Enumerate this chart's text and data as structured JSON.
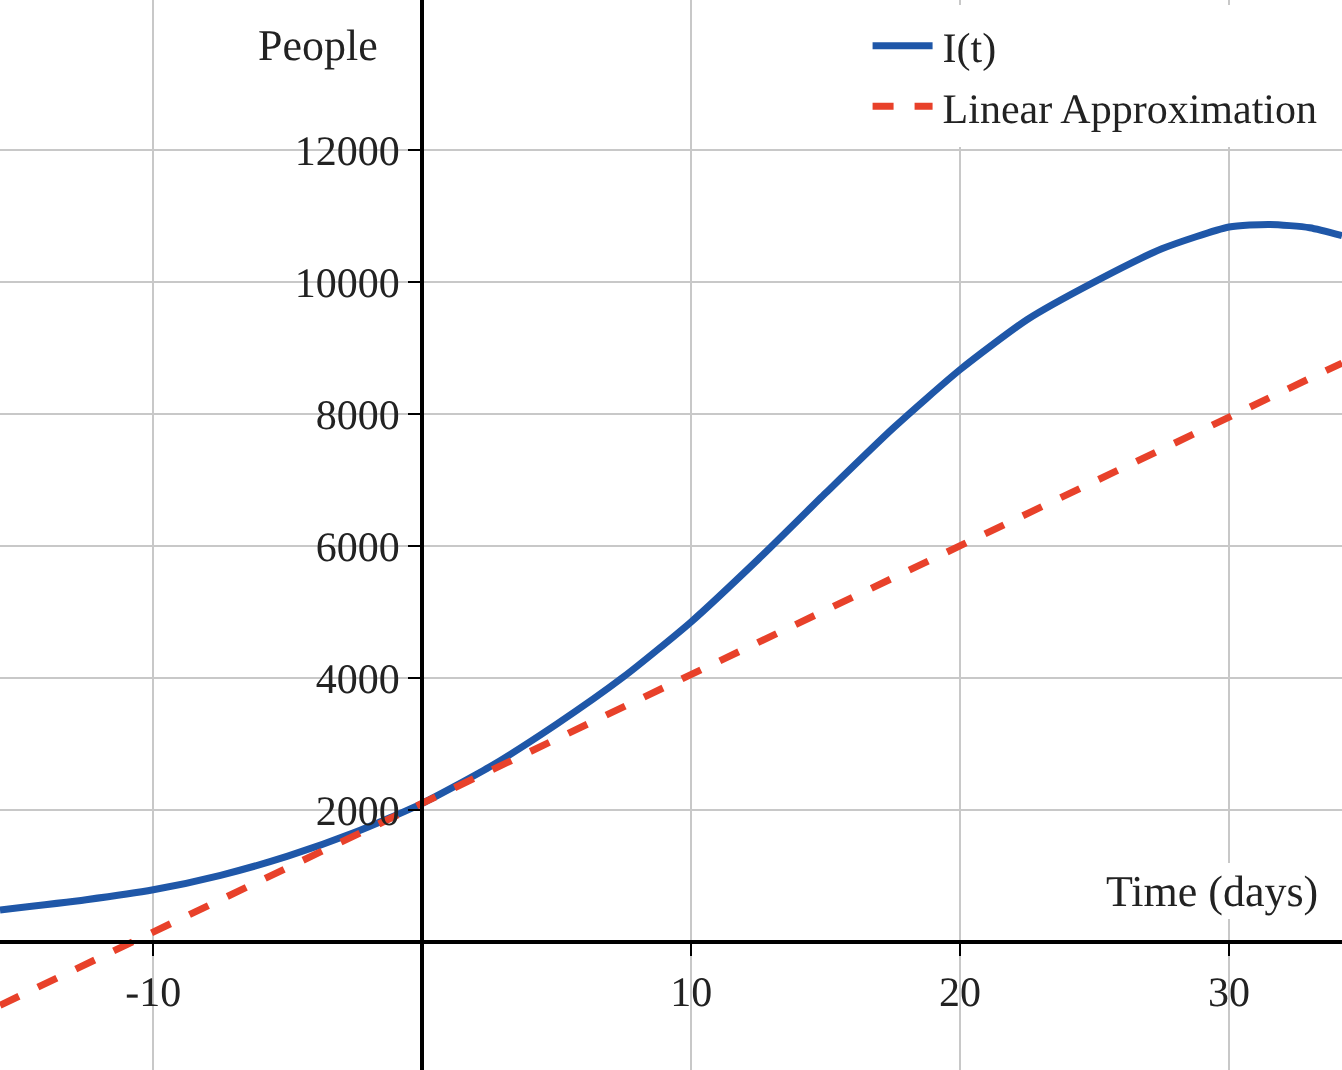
{
  "chart_data": {
    "type": "line",
    "xlabel": "Time (days)",
    "ylabel": "People",
    "xlim": [
      -15.7,
      34.2
    ],
    "ylim": [
      -1940,
      14270
    ],
    "xticks": [
      -10,
      10,
      20,
      30
    ],
    "yticks": [
      2000,
      4000,
      6000,
      8000,
      10000,
      12000
    ],
    "grid": true,
    "legend": "top right",
    "series": [
      {
        "name": "I(t)",
        "color": "#1f57a8",
        "line_style": "solid",
        "x": [
          -15.7,
          -12.5,
          -10,
          -7.5,
          -5,
          -2.5,
          0,
          2.5,
          5,
          7.5,
          10,
          12.5,
          15,
          17.5,
          20,
          22.5,
          25,
          27.5,
          30,
          31.5,
          33,
          34.2
        ],
        "values": [
          485,
          640,
          790,
          1010,
          1300,
          1660,
          2100,
          2650,
          3300,
          4020,
          4850,
          5800,
          6800,
          7780,
          8670,
          9430,
          10000,
          10500,
          10830,
          10870,
          10820,
          10700
        ]
      },
      {
        "name": "Linear Approximation",
        "color": "#e8412a",
        "line_style": "dashed",
        "x": [
          -15.7,
          34.2
        ],
        "values": [
          -960,
          8770
        ]
      }
    ]
  }
}
